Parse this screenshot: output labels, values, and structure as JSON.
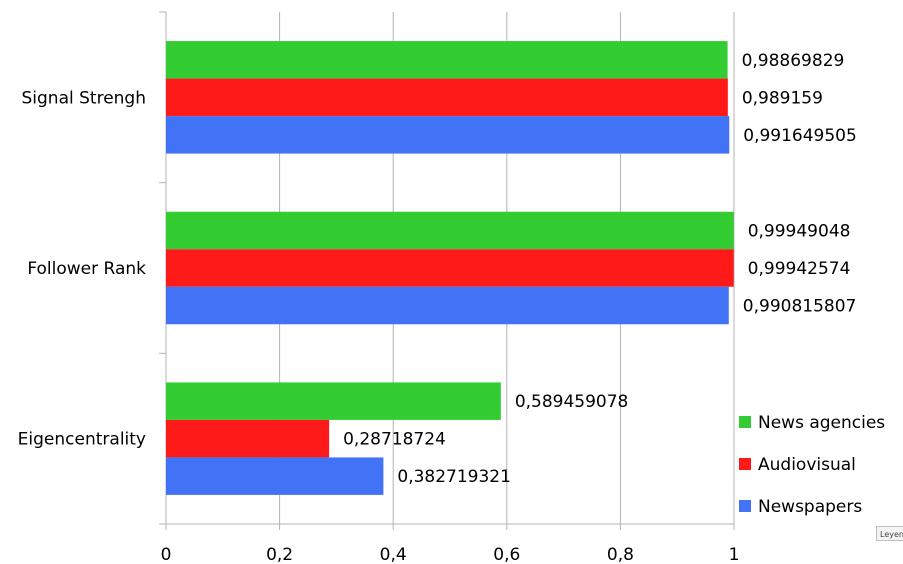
{
  "chart_data": {
    "type": "bar",
    "orientation": "horizontal",
    "categories": [
      "Signal Strengh",
      "Follower Rank",
      "Eigencentrality"
    ],
    "series": [
      {
        "name": "News agencies",
        "color": "#33cc33",
        "values": [
          0.98869829,
          0.99949048,
          0.589459078
        ],
        "labels": [
          "0,98869829",
          "0,99949048",
          "0,589459078"
        ]
      },
      {
        "name": "Audiovisual",
        "color": "#ff1a1a",
        "values": [
          0.989159,
          0.99942574,
          0.28718724
        ],
        "labels": [
          "0,989159",
          "0,99942574",
          "0,28718724"
        ]
      },
      {
        "name": "Newspapers",
        "color": "#4272f5",
        "values": [
          0.991649505,
          0.990815807,
          0.382719321
        ],
        "labels": [
          "0,991649505",
          "0,990815807",
          "0,382719321"
        ]
      }
    ],
    "xlim": [
      0,
      1
    ],
    "x_ticks": [
      "0",
      "0,2",
      "0,4",
      "0,6",
      "0,8",
      "1"
    ],
    "grid": true,
    "legend_position": "bottom-right"
  },
  "corner_tag": "Leyenda"
}
